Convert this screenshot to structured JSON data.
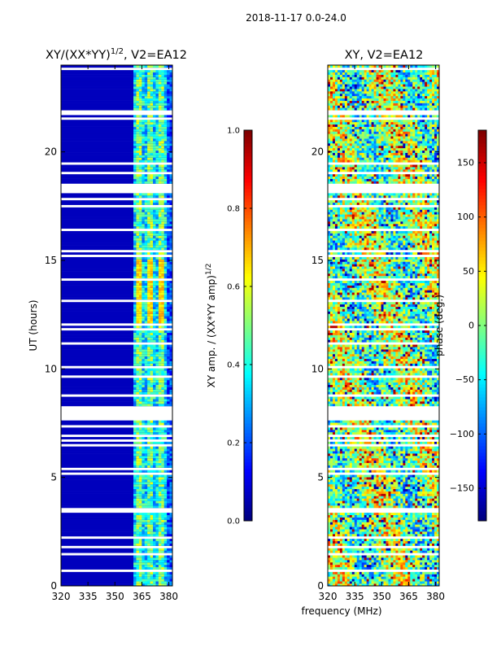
{
  "figure": {
    "suptitle": "2018-11-17 0.0-24.0",
    "shared_xlabel": "frequency (MHz)"
  },
  "chart_data": [
    {
      "type": "heatmap",
      "title_main": "XY/(XX*YY)",
      "title_exp": "1/2",
      "title_suffix": ", V2=EA12",
      "xlabel": "",
      "ylabel": "UT (hours)",
      "xlim": [
        320,
        382
      ],
      "ylim": [
        0,
        24
      ],
      "xticks": [
        320,
        335,
        350,
        365,
        380
      ],
      "yticks": [
        0,
        5,
        10,
        15,
        20
      ],
      "colormap": "jet",
      "colorbar": {
        "label_main": "XY amp. / (XX*YY amp)",
        "label_exp": "1/2",
        "range": [
          0.0,
          1.0
        ],
        "ticks": [
          "0.0",
          "0.2",
          "0.4",
          "0.6",
          "0.8",
          "1.0"
        ],
        "tick_values": [
          0.0,
          0.2,
          0.4,
          0.6,
          0.8,
          1.0
        ]
      },
      "notes": "Low values (~0.05) below 359 MHz; elevated values (0.3-0.65) between 361 and 382 MHz"
    },
    {
      "type": "heatmap",
      "title_main": "XY, V2=EA12",
      "xlabel": "",
      "ylabel": "",
      "xlim": [
        320,
        382
      ],
      "ylim": [
        0,
        24
      ],
      "xticks": [
        320,
        335,
        350,
        365,
        380
      ],
      "yticks": [
        0,
        5,
        10,
        15,
        20
      ],
      "colormap": "jet",
      "colorbar": {
        "label_main": "phase (deg.)",
        "range": [
          -180,
          180
        ],
        "ticks": [
          "150",
          "100",
          "50",
          "0",
          "−50",
          "−100",
          "−150"
        ],
        "tick_values": [
          150,
          100,
          50,
          0,
          -50,
          -100,
          -150
        ]
      },
      "notes": "Phase noise spanning -180 to 180 deg"
    }
  ]
}
